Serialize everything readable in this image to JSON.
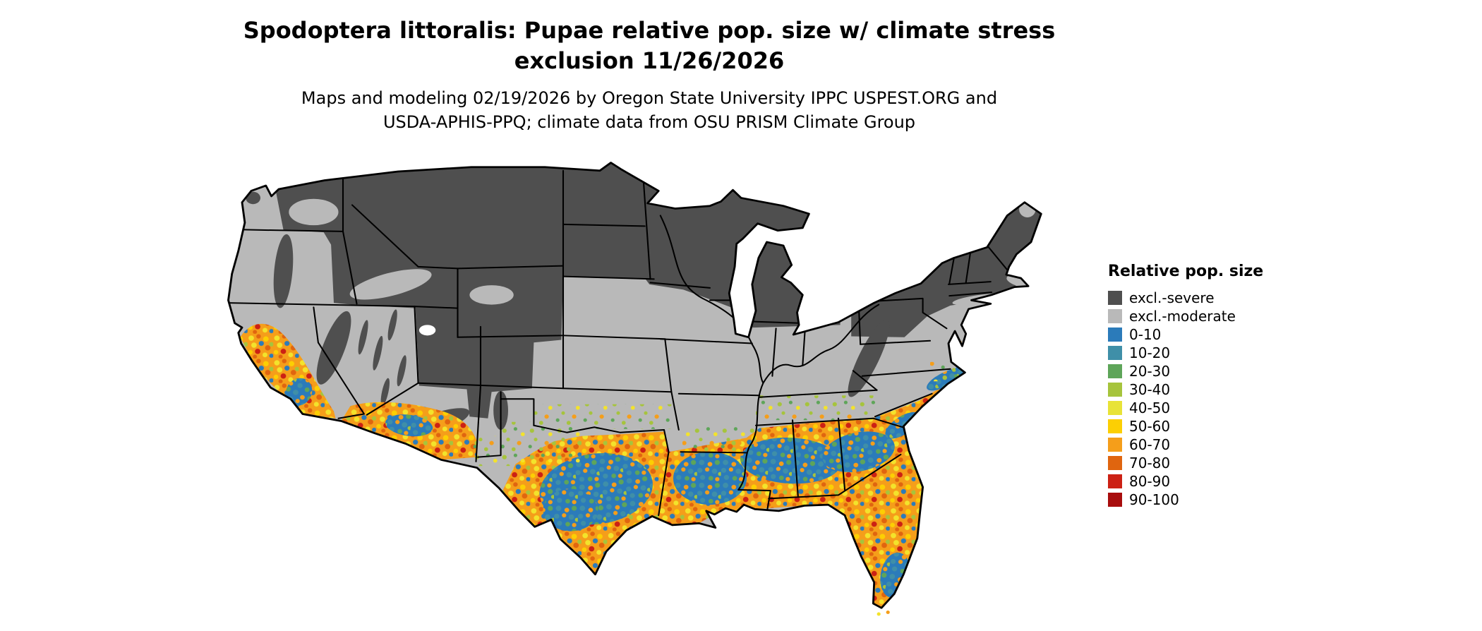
{
  "title": {
    "line1": "Spodoptera littoralis: Pupae relative pop. size w/ climate stress",
    "line2": "exclusion 11/26/2026"
  },
  "subtitle": {
    "line1": "Maps and modeling 02/19/2026 by Oregon State University IPPC USPEST.ORG and",
    "line2": "USDA-APHIS-PPQ; climate data from OSU PRISM Climate Group"
  },
  "legend": {
    "title": "Relative pop. size",
    "items": [
      {
        "label": "excl.-severe",
        "color": "#4f4f4f"
      },
      {
        "label": "excl.-moderate",
        "color": "#b9b9b9"
      },
      {
        "label": "0-10",
        "color": "#2b7bba"
      },
      {
        "label": "10-20",
        "color": "#3f8fa8"
      },
      {
        "label": "20-30",
        "color": "#5ea559"
      },
      {
        "label": "30-40",
        "color": "#a6c43c"
      },
      {
        "label": "40-50",
        "color": "#e8e337"
      },
      {
        "label": "50-60",
        "color": "#fccf03"
      },
      {
        "label": "60-70",
        "color": "#f59e1a"
      },
      {
        "label": "70-80",
        "color": "#e0650f"
      },
      {
        "label": "80-90",
        "color": "#cc2114"
      },
      {
        "label": "90-100",
        "color": "#a80d0d"
      }
    ]
  },
  "map": {
    "region": "Contiguous United States",
    "land_base_color": "#b9b9b9",
    "excluded_severe_color": "#4f4f4f",
    "border_color": "#000000",
    "background_color": "#ffffff"
  }
}
